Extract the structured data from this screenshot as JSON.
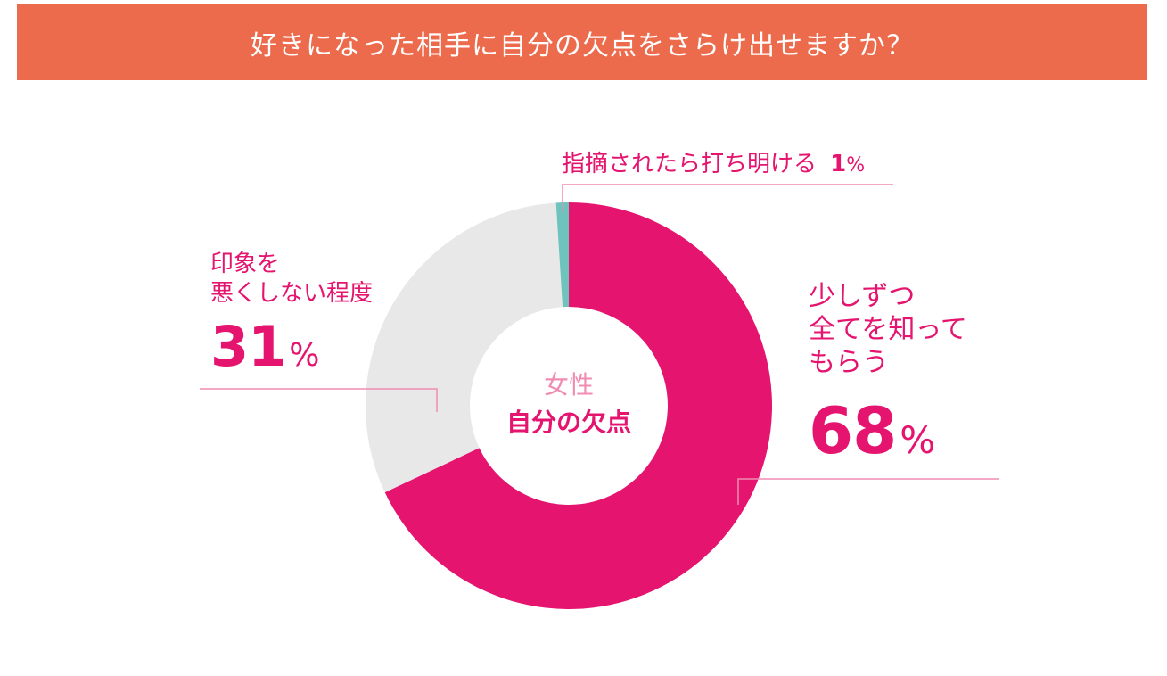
{
  "header": {
    "title": "好きになった相手に自分の欠点をさらけ出せますか？"
  },
  "center": {
    "line1": "女性",
    "line2": "自分の欠点"
  },
  "labels": {
    "small": {
      "text": "指摘されたら打ち明ける",
      "pct": "1",
      "unit": "%"
    },
    "left": {
      "line1": "印象を",
      "line2": "悪くしない程度",
      "pct": "31",
      "unit": "%"
    },
    "right": {
      "line1": "少しずつ",
      "line2": "全てを知って",
      "line3": "もらう",
      "pct": "68",
      "unit": "%"
    }
  },
  "colors": {
    "title_bg": "#ec6b4d",
    "main": "#e4146f",
    "light": "#e8e8e8",
    "teal": "#6ec3bd",
    "leader": "#f08cb2",
    "center_top": "#f08cb2"
  },
  "chart_data": {
    "type": "pie",
    "donut": true,
    "title": "好きになった相手に自分の欠点をさらけ出せますか？",
    "center_label": [
      "女性",
      "自分の欠点"
    ],
    "categories": [
      "少しずつ全てを知ってもらう",
      "印象を悪くしない程度",
      "指摘されたら打ち明ける"
    ],
    "values": [
      68,
      31,
      1
    ],
    "unit": "%",
    "colors": [
      "#e4146f",
      "#e8e8e8",
      "#6ec3bd"
    ],
    "start_angle": "12 o'clock",
    "direction": "clockwise"
  }
}
